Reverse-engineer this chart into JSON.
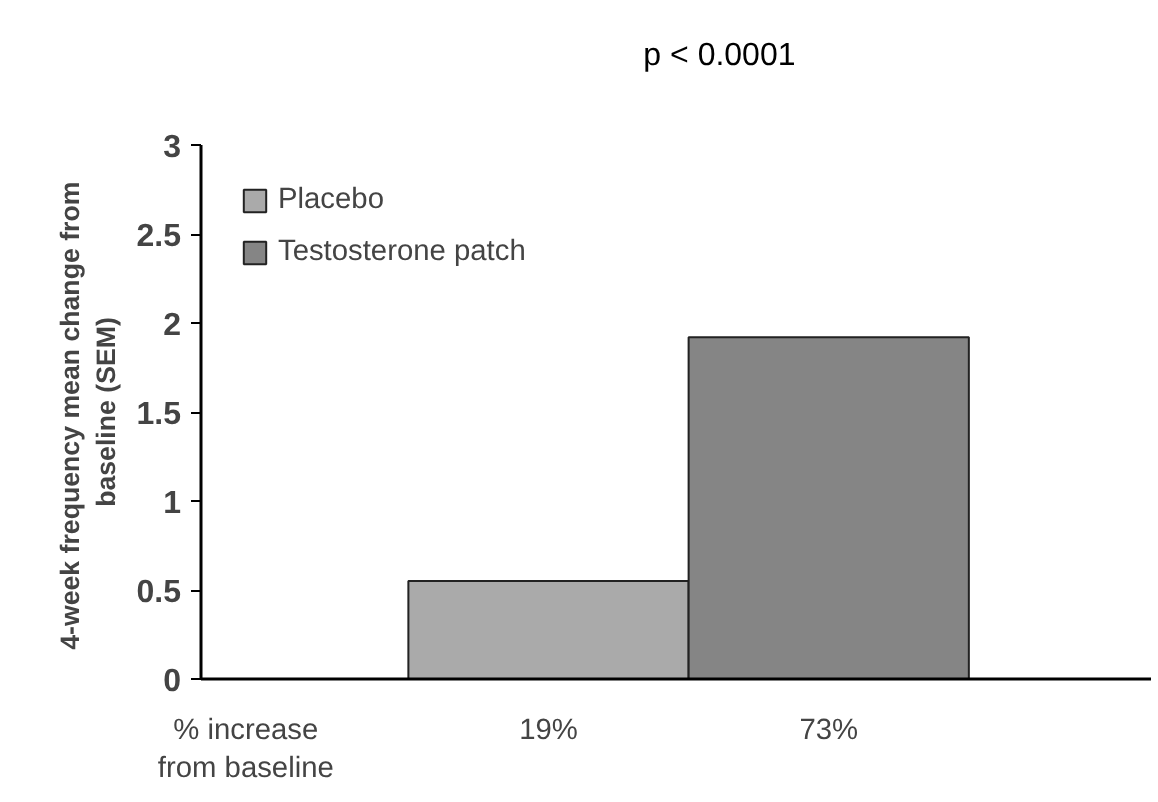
{
  "chart_data": {
    "type": "bar",
    "categories": [
      "19%",
      "73%"
    ],
    "series": [
      {
        "name": "Placebo",
        "color": "#aaaaaa",
        "values": [
          0.55,
          null
        ]
      },
      {
        "name": "Testosterone patch",
        "color": "#858585",
        "values": [
          null,
          1.92
        ]
      }
    ],
    "ylabel": "4-week frequency  mean change from\nbaseline (SEM)",
    "ylim": [
      0,
      3
    ],
    "yticks": [
      0,
      {
        "value": 0.5,
        "label": "0.5"
      },
      1,
      {
        "value": 1.5,
        "label": "1.5"
      },
      2,
      {
        "value": 2.5,
        "label": "2.5"
      },
      3
    ],
    "grid": false,
    "legend": "top left",
    "annotations": [
      "p < 0.0001",
      "% increase\nfrom baseline"
    ]
  }
}
